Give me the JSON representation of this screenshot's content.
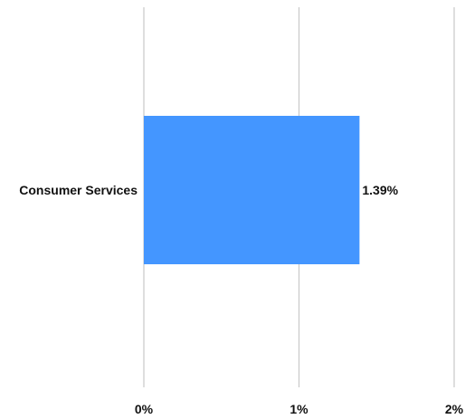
{
  "chart_data": {
    "type": "bar",
    "orientation": "horizontal",
    "categories": [
      "Consumer Services"
    ],
    "values": [
      1.39
    ],
    "value_labels": [
      "1.39%"
    ],
    "xlim": [
      0,
      2
    ],
    "x_ticks": [
      0,
      1,
      2
    ],
    "x_tick_labels": [
      "0%",
      "1%",
      "2%"
    ],
    "grid": true,
    "bar_color": "#4496FF",
    "grid_color": "#C8C8C8",
    "title": "",
    "xlabel": "",
    "ylabel": ""
  }
}
